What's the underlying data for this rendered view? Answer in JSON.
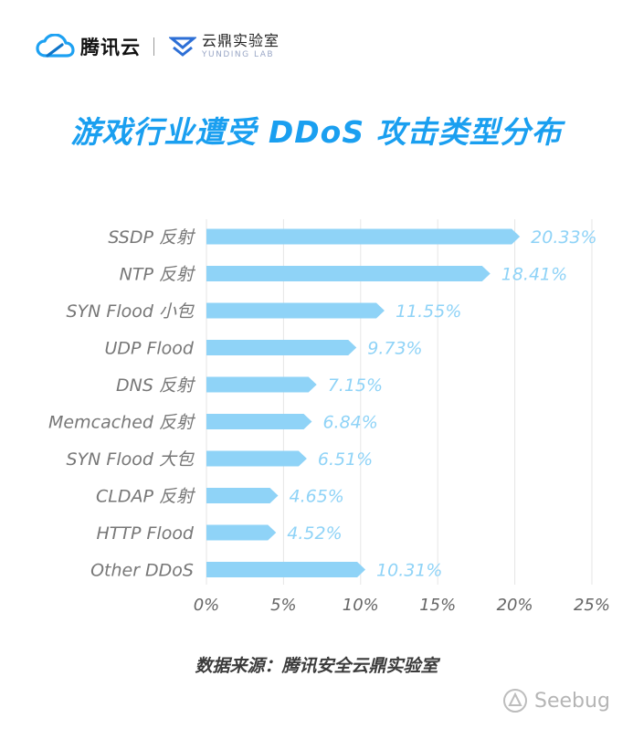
{
  "header": {
    "brand_tencent": "腾讯云",
    "brand_yunding_cn": "云鼎实验室",
    "brand_yunding_en": "YUNDING LAB",
    "logo_icons": [
      "cloud-logo-icon",
      "yunding-logo-icon"
    ]
  },
  "chart_data": {
    "type": "bar",
    "orientation": "horizontal",
    "title": "游戏行业遭受 DDoS 攻击类型分布",
    "categories": [
      "SSDP 反射",
      "NTP 反射",
      "SYN Flood 小包",
      "UDP Flood",
      "DNS 反射",
      "Memcached 反射",
      "SYN Flood 大包",
      "CLDAP 反射",
      "HTTP Flood",
      "Other DDoS"
    ],
    "values": [
      20.33,
      18.41,
      11.55,
      9.73,
      7.15,
      6.84,
      6.51,
      4.65,
      4.52,
      10.31
    ],
    "value_labels": [
      "20.33%",
      "18.41%",
      "11.55%",
      "9.73%",
      "7.15%",
      "6.84%",
      "6.51%",
      "4.65%",
      "4.52%",
      "10.31%"
    ],
    "xlim": [
      0,
      25
    ],
    "xticks": [
      0,
      5,
      10,
      15,
      20,
      25
    ],
    "xtick_labels": [
      "0%",
      "5%",
      "10%",
      "15%",
      "20%",
      "25%"
    ],
    "grid": "vertical",
    "bar_color": "#8fd3f7",
    "label_color": "#8fd3f7",
    "category_color": "#777777"
  },
  "source": "数据来源：腾讯安全云鼎实验室",
  "watermark": {
    "text": "Seebug",
    "icon": "seebug-logo-icon"
  },
  "colors": {
    "title": "#1a9ff0",
    "logo_blue": "#1da1f2",
    "grid": "#e6e6e6"
  }
}
